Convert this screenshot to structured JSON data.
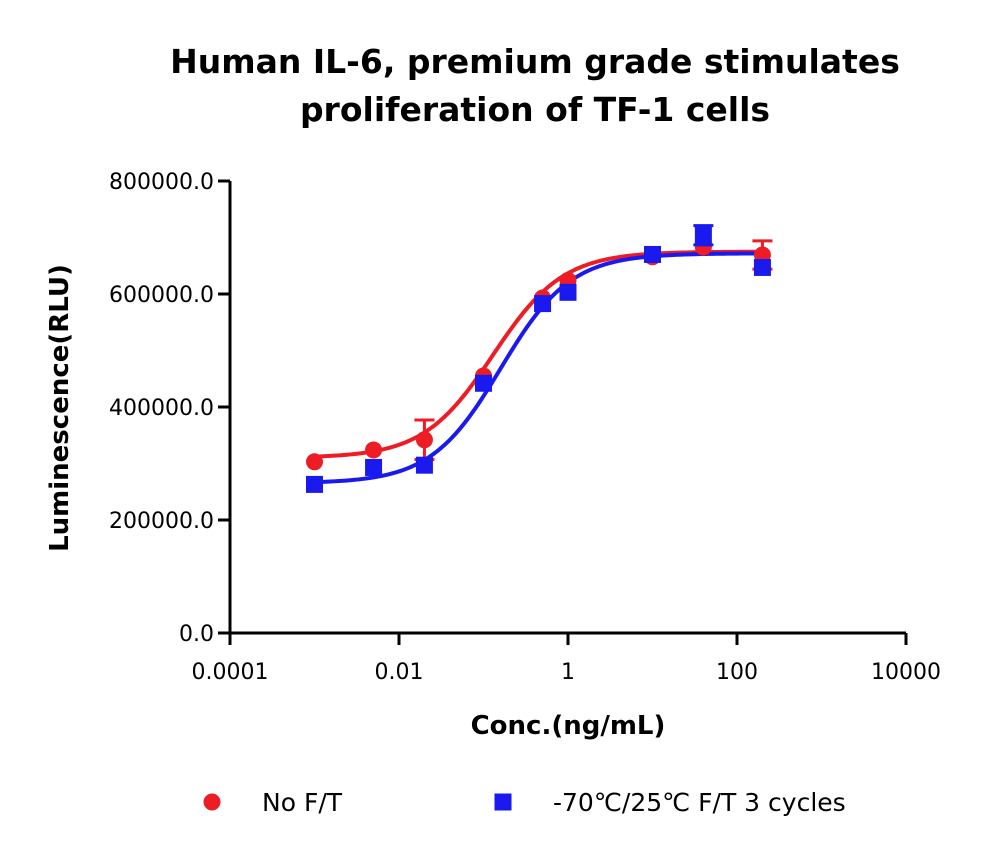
{
  "chart_data": {
    "type": "scatter",
    "title_lines": [
      "Human IL-6, premium grade stimulates",
      "proliferation of TF-1 cells"
    ],
    "xlabel": "Conc.(ng/mL)",
    "ylabel": "Luminescence(RLU)",
    "x_scale": "log",
    "xlim": [
      0.0001,
      10000
    ],
    "ylim": [
      0,
      800000
    ],
    "x_ticks": [
      0.0001,
      0.01,
      1,
      100,
      10000
    ],
    "x_tick_labels": [
      "0.0001",
      "0.01",
      "1",
      "100",
      "10000"
    ],
    "y_ticks": [
      0,
      200000,
      400000,
      600000,
      800000
    ],
    "y_tick_labels": [
      "0.0",
      "200000.0",
      "400000.0",
      "600000.0",
      "800000.0"
    ],
    "grid": false,
    "legend_position": "bottom",
    "series": [
      {
        "name": "No F/T",
        "color": "#ee1c25",
        "marker": "circle",
        "x": [
          0.001,
          0.005,
          0.02,
          0.1,
          0.5,
          1,
          10,
          40,
          200
        ],
        "y": [
          303000,
          324000,
          342000,
          455000,
          593000,
          624000,
          666000,
          683000,
          669000
        ],
        "error": [
          0,
          0,
          35000,
          0,
          0,
          0,
          0,
          0,
          25000
        ],
        "fit": {
          "bottom": 310000,
          "top": 675000,
          "ec50": 0.13,
          "hill": 1.05
        }
      },
      {
        "name": "-70℃/25℃ F/T 3 cycles",
        "color": "#1a1aee",
        "marker": "square",
        "x": [
          0.001,
          0.005,
          0.02,
          0.1,
          0.5,
          1,
          10,
          40,
          200
        ],
        "y": [
          263000,
          293000,
          297000,
          442000,
          583000,
          603000,
          670000,
          704000,
          647000
        ],
        "error": [
          0,
          0,
          0,
          0,
          0,
          0,
          0,
          17000,
          0
        ],
        "fit": {
          "bottom": 265000,
          "top": 672000,
          "ec50": 0.16,
          "hill": 1.05
        }
      }
    ]
  }
}
